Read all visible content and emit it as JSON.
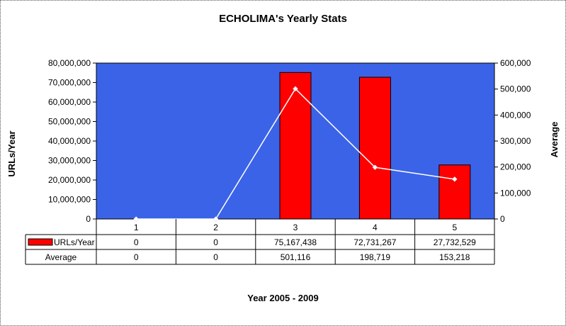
{
  "title": "ECHOLIMA's Yearly Stats",
  "colors": {
    "plot_bg": "#3b63e8",
    "bar": "#ff0000",
    "line": "#ffffff"
  },
  "chart_data": {
    "type": "bar",
    "title": "ECHOLIMA's Yearly Stats",
    "xlabel": "Year 2005 - 2009",
    "ylabel": "URLs/Year",
    "y2label": "Average",
    "categories": [
      "1",
      "2",
      "3",
      "4",
      "5"
    ],
    "ylim": [
      0,
      80000000
    ],
    "y2lim": [
      0,
      600000
    ],
    "yticks": [
      "0",
      "10,000,000",
      "20,000,000",
      "30,000,000",
      "40,000,000",
      "50,000,000",
      "60,000,000",
      "70,000,000",
      "80,000,000"
    ],
    "y2ticks": [
      "0",
      "100,000",
      "200,000",
      "300,000",
      "400,000",
      "500,000",
      "600,000"
    ],
    "series": [
      {
        "name": "URLs/Year",
        "type": "bar",
        "axis": "left",
        "values": [
          0,
          0,
          75167438,
          72731267,
          27732529
        ],
        "labels": [
          "0",
          "0",
          "75,167,438",
          "72,731,267",
          "27,732,529"
        ]
      },
      {
        "name": "Average",
        "type": "line",
        "axis": "right",
        "values": [
          0,
          0,
          501116,
          198719,
          153218
        ],
        "labels": [
          "0",
          "0",
          "501,116",
          "198,719",
          "153,218"
        ]
      }
    ],
    "grid": false,
    "legend": "data-table"
  }
}
